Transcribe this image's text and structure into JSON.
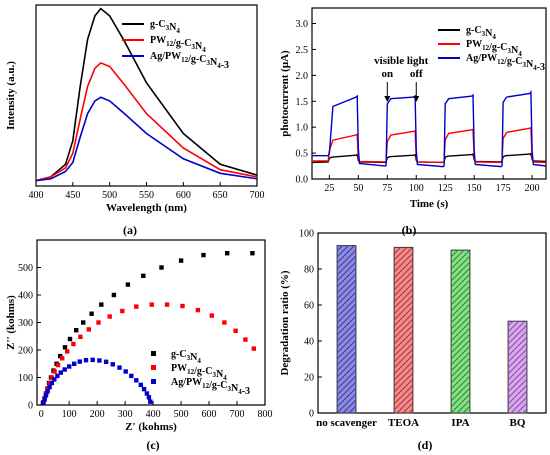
{
  "chart_data": [
    {
      "panel": "(a)",
      "type": "line",
      "xlabel": "Wavelength (nm)",
      "ylabel": "Intensity (a.u.)",
      "xlim": [
        400,
        700
      ],
      "xticks": [
        400,
        450,
        500,
        550,
        600,
        650,
        700
      ],
      "ylim": [
        0,
        1
      ],
      "yticks_shown": false,
      "grid": false,
      "legend": "top-right",
      "series": [
        {
          "name": "g-C3N4",
          "color": "#000000",
          "x": [
            400,
            420,
            440,
            450,
            460,
            470,
            480,
            488,
            500,
            520,
            550,
            600,
            650,
            700
          ],
          "y": [
            0.03,
            0.05,
            0.12,
            0.25,
            0.55,
            0.81,
            0.94,
            0.98,
            0.94,
            0.8,
            0.57,
            0.29,
            0.12,
            0.06
          ]
        },
        {
          "name": "PW12/g-C3N4",
          "color": "#ff0000",
          "x": [
            400,
            420,
            440,
            450,
            460,
            470,
            480,
            488,
            500,
            520,
            550,
            600,
            650,
            700
          ],
          "y": [
            0.03,
            0.05,
            0.1,
            0.18,
            0.37,
            0.55,
            0.65,
            0.68,
            0.66,
            0.56,
            0.4,
            0.21,
            0.09,
            0.05
          ]
        },
        {
          "name": "Ag/PW12/g-C3N4-3",
          "color": "#0000cc",
          "x": [
            400,
            420,
            440,
            450,
            460,
            470,
            480,
            488,
            500,
            520,
            550,
            600,
            650,
            700
          ],
          "y": [
            0.03,
            0.04,
            0.08,
            0.13,
            0.27,
            0.4,
            0.47,
            0.49,
            0.47,
            0.4,
            0.29,
            0.15,
            0.07,
            0.04
          ]
        }
      ]
    },
    {
      "panel": "(b)",
      "type": "line",
      "xlabel": "Time (s)",
      "ylabel": "photocurrent (μA)",
      "xlim": [
        10,
        212
      ],
      "xticks": [
        25,
        50,
        75,
        100,
        125,
        150,
        175,
        200
      ],
      "ylim": [
        0,
        3.3
      ],
      "yticks": [
        0.0,
        0.5,
        1.0,
        1.5,
        2.0,
        2.5,
        3.0
      ],
      "grid": false,
      "legend": "top-right",
      "annotations": [
        {
          "text": "visible light",
          "x": 87
        },
        {
          "text": "on",
          "x": 75
        },
        {
          "text": "off",
          "x": 100
        }
      ],
      "series": [
        {
          "name": "g-C3N4",
          "color": "#000000",
          "x": [
            10,
            24,
            25,
            27,
            48,
            49,
            50,
            51,
            73,
            74,
            75,
            77,
            98,
            99,
            100,
            101,
            123,
            124,
            125,
            127,
            148,
            149,
            150,
            151,
            173,
            174,
            175,
            177,
            198,
            199,
            200,
            201,
            212
          ],
          "y": [
            0.32,
            0.33,
            0.4,
            0.42,
            0.46,
            0.47,
            0.36,
            0.33,
            0.32,
            0.33,
            0.41,
            0.43,
            0.46,
            0.47,
            0.36,
            0.33,
            0.32,
            0.33,
            0.42,
            0.44,
            0.47,
            0.48,
            0.37,
            0.34,
            0.33,
            0.34,
            0.43,
            0.45,
            0.48,
            0.49,
            0.38,
            0.35,
            0.34
          ]
        },
        {
          "name": "PW12/g-C3N4",
          "color": "#ff0000",
          "x": [
            10,
            24,
            25,
            28,
            48,
            49,
            50,
            51,
            73,
            74,
            75,
            78,
            98,
            99,
            100,
            101,
            123,
            124,
            125,
            128,
            148,
            149,
            150,
            151,
            173,
            174,
            175,
            178,
            198,
            199,
            200,
            201,
            212
          ],
          "y": [
            0.35,
            0.35,
            0.55,
            0.75,
            0.85,
            0.86,
            0.4,
            0.34,
            0.33,
            0.34,
            0.72,
            0.85,
            0.92,
            0.93,
            0.4,
            0.33,
            0.32,
            0.33,
            0.76,
            0.88,
            0.95,
            0.96,
            0.4,
            0.33,
            0.32,
            0.33,
            0.78,
            0.9,
            0.98,
            0.99,
            0.4,
            0.33,
            0.32
          ]
        },
        {
          "name": "Ag/PW12/g-C3N4-3",
          "color": "#0000cc",
          "x": [
            10,
            24,
            25,
            28,
            48,
            49,
            50,
            51,
            73,
            74,
            75,
            78,
            98,
            99,
            100,
            101,
            123,
            124,
            125,
            128,
            148,
            149,
            150,
            151,
            173,
            174,
            175,
            178,
            198,
            199,
            200,
            201,
            212
          ],
          "y": [
            0.45,
            0.45,
            0.5,
            1.4,
            1.58,
            1.6,
            0.6,
            0.3,
            0.25,
            0.26,
            1.45,
            1.55,
            1.58,
            1.6,
            0.55,
            0.28,
            0.24,
            0.25,
            1.45,
            1.55,
            1.6,
            1.62,
            0.55,
            0.28,
            0.24,
            0.25,
            1.48,
            1.58,
            1.65,
            1.68,
            0.55,
            0.28,
            0.25
          ]
        }
      ]
    },
    {
      "panel": "(c)",
      "type": "scatter",
      "xlabel": "Z' (kohms)",
      "ylabel": "Z'' (kohms)",
      "xlim": [
        -15,
        800
      ],
      "xticks": [
        0,
        100,
        200,
        300,
        400,
        500,
        600,
        700,
        800
      ],
      "ylim": [
        0,
        600
      ],
      "yticks": [
        0,
        100,
        200,
        300,
        400,
        500
      ],
      "grid": false,
      "legend": "lower-right",
      "series": [
        {
          "name": "g-C3N4",
          "color": "#000000",
          "x": [
            8,
            12,
            17,
            22,
            28,
            35,
            44,
            55,
            68,
            85,
            103,
            125,
            150,
            180,
            215,
            260,
            310,
            365,
            430,
            500,
            580,
            665,
            755
          ],
          "y": [
            10,
            25,
            42,
            60,
            80,
            100,
            125,
            150,
            178,
            210,
            240,
            272,
            300,
            332,
            365,
            400,
            438,
            470,
            500,
            525,
            545,
            552,
            552
          ]
        },
        {
          "name": "PW12/g-C3N4",
          "color": "#ff0000",
          "x": [
            8,
            12,
            17,
            23,
            30,
            38,
            48,
            60,
            75,
            93,
            115,
            140,
            170,
            205,
            245,
            290,
            340,
            395,
            450,
            505,
            560,
            610,
            655,
            695,
            730,
            760
          ],
          "y": [
            10,
            25,
            42,
            60,
            80,
            100,
            122,
            145,
            170,
            195,
            222,
            248,
            275,
            300,
            322,
            342,
            358,
            365,
            365,
            360,
            345,
            325,
            300,
            270,
            238,
            205
          ]
        },
        {
          "name": "Ag/PW12/g-C3N4-3",
          "color": "#0000cc",
          "x": [
            8,
            12,
            17,
            23,
            30,
            38,
            47,
            58,
            70,
            84,
            100,
            118,
            138,
            160,
            184,
            208,
            232,
            256,
            280,
            302,
            322,
            340,
            356,
            368,
            378,
            385,
            390
          ],
          "y": [
            8,
            20,
            35,
            50,
            65,
            80,
            93,
            106,
            118,
            129,
            140,
            150,
            158,
            163,
            164,
            162,
            157,
            148,
            136,
            122,
            106,
            90,
            73,
            58,
            42,
            28,
            12
          ]
        }
      ]
    },
    {
      "panel": "(d)",
      "type": "bar",
      "xlabel": "",
      "ylabel": "Degradation ratio (%)",
      "ylim": [
        0,
        100
      ],
      "yticks": [
        0,
        20,
        40,
        60,
        80,
        100
      ],
      "grid": false,
      "categories": [
        "no scavenger",
        "TEOA",
        "IPA",
        "BQ"
      ],
      "values": [
        93,
        92,
        90.5,
        51
      ],
      "colors": [
        "#8b8be0",
        "#f08c8c",
        "#88dd88",
        "#d8a8ee"
      ]
    }
  ]
}
